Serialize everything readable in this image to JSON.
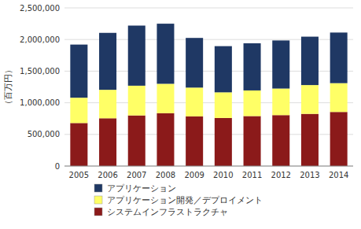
{
  "chart_data": {
    "type": "bar",
    "stacked": true,
    "y_label": "（百万円）",
    "categories": [
      "2005",
      "2006",
      "2007",
      "2008",
      "2009",
      "2010",
      "2011",
      "2012",
      "2013",
      "2014"
    ],
    "series": [
      {
        "name": "システムインフラストラクチャ",
        "color": "#8B1A1A",
        "values": [
          680000,
          755000,
          800000,
          835000,
          785000,
          760000,
          790000,
          805000,
          825000,
          855000
        ]
      },
      {
        "name": "アプリケーション開発／デプロイメント",
        "color": "#FFFF66",
        "values": [
          400000,
          450000,
          470000,
          465000,
          455000,
          405000,
          405000,
          420000,
          455000,
          455000
        ]
      },
      {
        "name": "アプリケーション",
        "color": "#1F3864",
        "values": [
          840000,
          900000,
          950000,
          950000,
          785000,
          730000,
          745000,
          760000,
          765000,
          800000
        ]
      }
    ],
    "ylim": [
      0,
      2500000
    ],
    "yticks": [
      0,
      {
        "value": 500000,
        "label": "500,000"
      },
      {
        "value": 1000000,
        "label": "1,000,000"
      },
      {
        "value": 1500000,
        "label": "1,500,000"
      },
      {
        "value": 2000000,
        "label": "2,000,000"
      },
      {
        "value": 2500000,
        "label": "2,500,000"
      }
    ],
    "grid": true,
    "legend": "bottom"
  }
}
